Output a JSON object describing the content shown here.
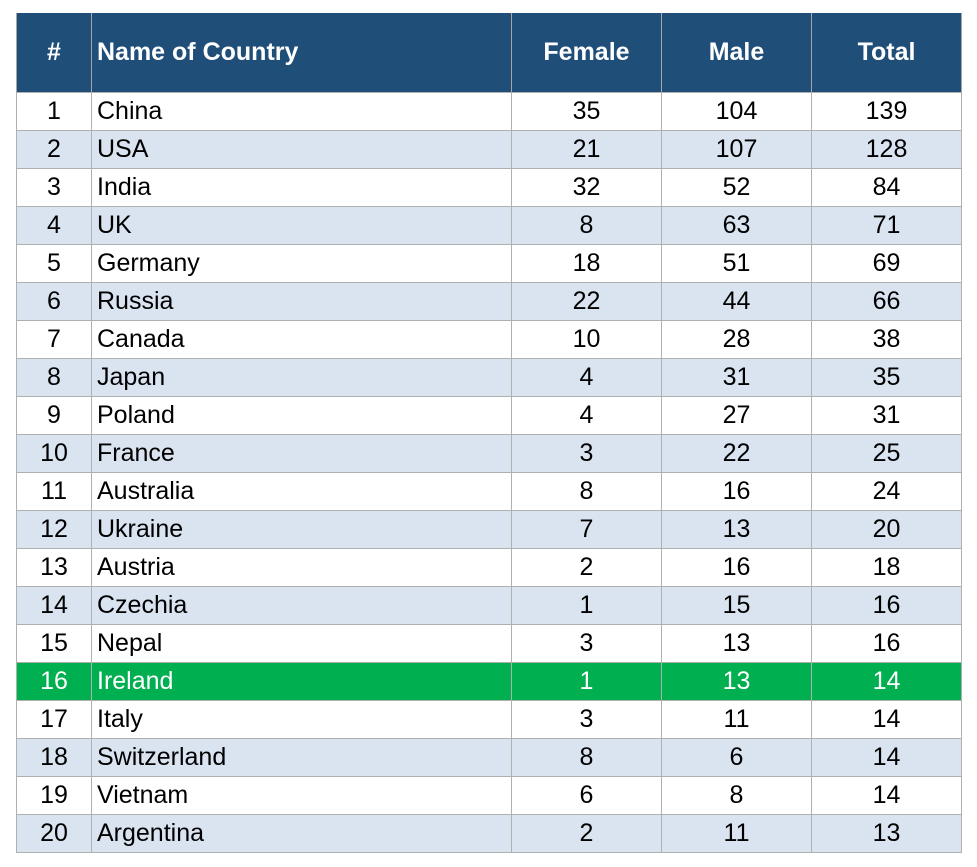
{
  "table": {
    "header": [
      "#",
      "Name of Country",
      "Female",
      "Male",
      "Total"
    ],
    "rows": [
      [
        1,
        "China",
        35,
        104,
        139
      ],
      [
        2,
        "USA",
        21,
        107,
        128
      ],
      [
        3,
        "India",
        32,
        52,
        84
      ],
      [
        4,
        "UK",
        8,
        63,
        71
      ],
      [
        5,
        "Germany",
        18,
        51,
        69
      ],
      [
        6,
        "Russia",
        22,
        44,
        66
      ],
      [
        7,
        "Canada",
        10,
        28,
        38
      ],
      [
        8,
        "Japan",
        4,
        31,
        35
      ],
      [
        9,
        "Poland",
        4,
        27,
        31
      ],
      [
        10,
        "France",
        3,
        22,
        25
      ],
      [
        11,
        "Australia",
        8,
        16,
        24
      ],
      [
        12,
        "Ukraine",
        7,
        13,
        20
      ],
      [
        13,
        "Austria",
        2,
        16,
        18
      ],
      [
        14,
        "Czechia",
        1,
        15,
        16
      ],
      [
        15,
        "Nepal",
        3,
        13,
        16
      ],
      [
        16,
        "Ireland",
        1,
        13,
        14
      ],
      [
        17,
        "Italy",
        3,
        11,
        14
      ],
      [
        18,
        "Switzerland",
        8,
        6,
        14
      ],
      [
        19,
        "Vietnam",
        6,
        8,
        14
      ],
      [
        20,
        "Argentina",
        2,
        11,
        13
      ]
    ],
    "highlighted_rank": 16,
    "highlight_color": "#00b050"
  }
}
